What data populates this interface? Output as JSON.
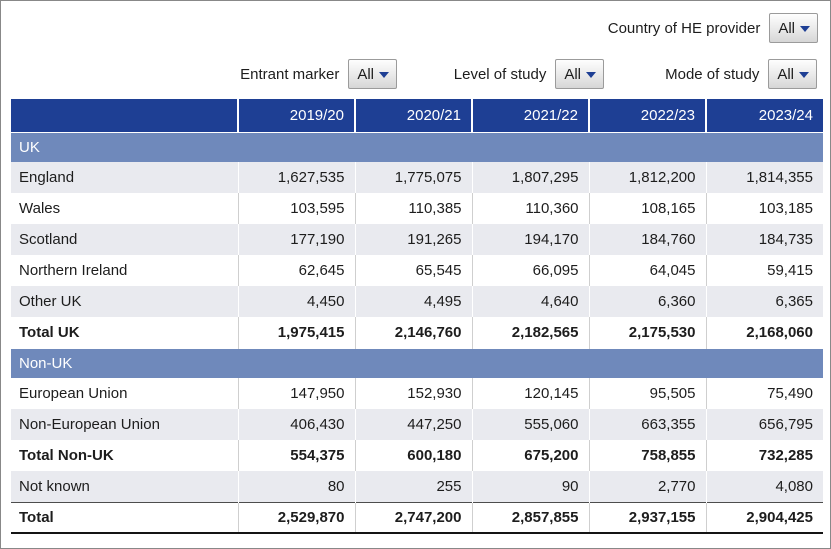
{
  "filters": {
    "country_of_he_provider": {
      "label": "Country of HE provider",
      "value": "All"
    },
    "entrant_marker": {
      "label": "Entrant marker",
      "value": "All"
    },
    "level_of_study": {
      "label": "Level of study",
      "value": "All"
    },
    "mode_of_study": {
      "label": "Mode of study",
      "value": "All"
    }
  },
  "colors": {
    "header_background": "#1e3f94",
    "section_band_background": "#6f89bb",
    "shaded_row_background": "#e9eaef",
    "header_text": "#ffffff",
    "caret": "#1e3f94"
  },
  "table": {
    "columns": [
      "2019/20",
      "2020/21",
      "2021/22",
      "2022/23",
      "2023/24"
    ],
    "rows": [
      {
        "type": "section",
        "label": "UK"
      },
      {
        "type": "data",
        "label": "England",
        "values": [
          "1,627,535",
          "1,775,075",
          "1,807,295",
          "1,812,200",
          "1,814,355"
        ],
        "shaded": true,
        "bold": false
      },
      {
        "type": "data",
        "label": "Wales",
        "values": [
          "103,595",
          "110,385",
          "110,360",
          "108,165",
          "103,185"
        ],
        "shaded": false,
        "bold": false
      },
      {
        "type": "data",
        "label": "Scotland",
        "values": [
          "177,190",
          "191,265",
          "194,170",
          "184,760",
          "184,735"
        ],
        "shaded": true,
        "bold": false
      },
      {
        "type": "data",
        "label": "Northern Ireland",
        "values": [
          "62,645",
          "65,545",
          "66,095",
          "64,045",
          "59,415"
        ],
        "shaded": false,
        "bold": false
      },
      {
        "type": "data",
        "label": "Other UK",
        "values": [
          "4,450",
          "4,495",
          "4,640",
          "6,360",
          "6,365"
        ],
        "shaded": true,
        "bold": false
      },
      {
        "type": "data",
        "label": "Total UK",
        "values": [
          "1,975,415",
          "2,146,760",
          "2,182,565",
          "2,175,530",
          "2,168,060"
        ],
        "shaded": false,
        "bold": true
      },
      {
        "type": "section",
        "label": "Non-UK"
      },
      {
        "type": "data",
        "label": "European Union",
        "values": [
          "147,950",
          "152,930",
          "120,145",
          "95,505",
          "75,490"
        ],
        "shaded": false,
        "bold": false
      },
      {
        "type": "data",
        "label": "Non-European Union",
        "values": [
          "406,430",
          "447,250",
          "555,060",
          "663,355",
          "656,795"
        ],
        "shaded": true,
        "bold": false
      },
      {
        "type": "data",
        "label": "Total Non-UK",
        "values": [
          "554,375",
          "600,180",
          "675,200",
          "758,855",
          "732,285"
        ],
        "shaded": false,
        "bold": true
      },
      {
        "type": "data",
        "label": "Not known",
        "values": [
          "80",
          "255",
          "90",
          "2,770",
          "4,080"
        ],
        "shaded": true,
        "bold": false
      },
      {
        "type": "data",
        "label": "Total",
        "values": [
          "2,529,870",
          "2,747,200",
          "2,857,855",
          "2,937,155",
          "2,904,425"
        ],
        "shaded": false,
        "bold": true,
        "top_rule": true,
        "bottom_rule": true
      }
    ]
  }
}
